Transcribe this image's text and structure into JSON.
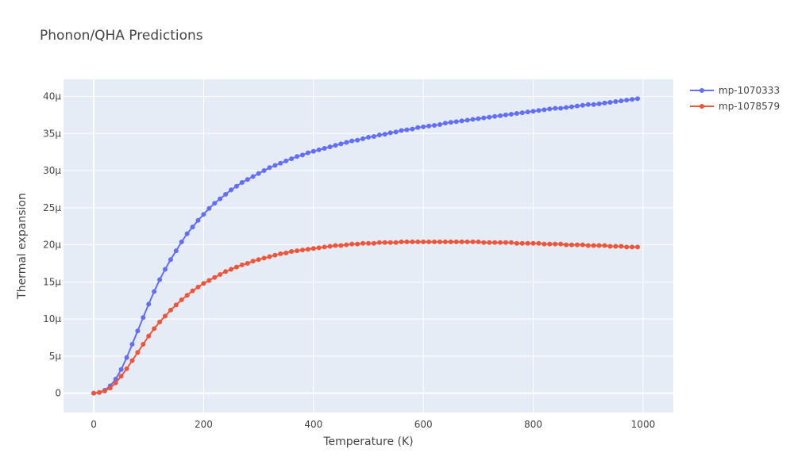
{
  "chart_data": {
    "type": "line",
    "title": "Phonon/QHA Predictions",
    "xlabel": "Temperature (K)",
    "ylabel": "Thermal expansion",
    "xlim": [
      -55,
      1055
    ],
    "ylim": [
      -2.6,
      42.3
    ],
    "y_unit_scale": 1e-06,
    "x_ticks": [
      0,
      200,
      400,
      600,
      800,
      1000
    ],
    "x_tick_labels": [
      "0",
      "200",
      "400",
      "600",
      "800",
      "1000"
    ],
    "y_ticks": [
      0,
      5,
      10,
      15,
      20,
      25,
      30,
      35,
      40
    ],
    "y_tick_labels": [
      "0",
      "5μ",
      "10μ",
      "15μ",
      "20μ",
      "25μ",
      "30μ",
      "35μ",
      "40μ"
    ],
    "grid": true,
    "legend_position": "top-right, outside plot",
    "series": [
      {
        "name": "mp-1070333",
        "color": "#636efa",
        "x": [
          0,
          10,
          20,
          30,
          40,
          50,
          60,
          70,
          80,
          90,
          100,
          110,
          120,
          130,
          140,
          150,
          160,
          170,
          180,
          190,
          200,
          210,
          220,
          230,
          240,
          250,
          260,
          270,
          280,
          290,
          300,
          310,
          320,
          330,
          340,
          350,
          360,
          370,
          380,
          390,
          400,
          410,
          420,
          430,
          440,
          450,
          460,
          470,
          480,
          490,
          500,
          510,
          520,
          530,
          540,
          550,
          560,
          570,
          580,
          590,
          600,
          610,
          620,
          630,
          640,
          650,
          660,
          670,
          680,
          690,
          700,
          710,
          720,
          730,
          740,
          750,
          760,
          770,
          780,
          790,
          800,
          810,
          820,
          830,
          840,
          850,
          860,
          870,
          880,
          890,
          900,
          910,
          920,
          930,
          940,
          950,
          960,
          970,
          980,
          990
        ],
        "y": [
          0,
          0.1,
          0.4,
          1.0,
          1.9,
          3.2,
          4.8,
          6.6,
          8.4,
          10.2,
          12.0,
          13.7,
          15.3,
          16.7,
          18.0,
          19.2,
          20.4,
          21.5,
          22.4,
          23.3,
          24.1,
          24.9,
          25.6,
          26.2,
          26.8,
          27.4,
          27.9,
          28.4,
          28.8,
          29.2,
          29.6,
          30.0,
          30.4,
          30.7,
          31.0,
          31.3,
          31.6,
          31.9,
          32.1,
          32.4,
          32.6,
          32.8,
          33.0,
          33.2,
          33.4,
          33.6,
          33.8,
          34.0,
          34.1,
          34.3,
          34.5,
          34.6,
          34.8,
          34.9,
          35.1,
          35.2,
          35.4,
          35.5,
          35.6,
          35.8,
          35.9,
          36.0,
          36.1,
          36.2,
          36.4,
          36.5,
          36.6,
          36.7,
          36.8,
          36.9,
          37.0,
          37.1,
          37.2,
          37.3,
          37.4,
          37.5,
          37.6,
          37.7,
          37.8,
          37.9,
          38.0,
          38.1,
          38.2,
          38.3,
          38.4,
          38.4,
          38.5,
          38.6,
          38.7,
          38.8,
          38.9,
          38.9,
          39.0,
          39.1,
          39.2,
          39.3,
          39.4,
          39.5,
          39.6,
          39.7
        ]
      },
      {
        "name": "mp-1078579",
        "color": "#ef553b",
        "x": [
          0,
          10,
          20,
          30,
          40,
          50,
          60,
          70,
          80,
          90,
          100,
          110,
          120,
          130,
          140,
          150,
          160,
          170,
          180,
          190,
          200,
          210,
          220,
          230,
          240,
          250,
          260,
          270,
          280,
          290,
          300,
          310,
          320,
          330,
          340,
          350,
          360,
          370,
          380,
          390,
          400,
          410,
          420,
          430,
          440,
          450,
          460,
          470,
          480,
          490,
          500,
          510,
          520,
          530,
          540,
          550,
          560,
          570,
          580,
          590,
          600,
          610,
          620,
          630,
          640,
          650,
          660,
          670,
          680,
          690,
          700,
          710,
          720,
          730,
          740,
          750,
          760,
          770,
          780,
          790,
          800,
          810,
          820,
          830,
          840,
          850,
          860,
          870,
          880,
          890,
          900,
          910,
          920,
          930,
          940,
          950,
          960,
          970,
          980,
          990
        ],
        "y": [
          0,
          0.1,
          0.3,
          0.7,
          1.4,
          2.3,
          3.3,
          4.4,
          5.5,
          6.6,
          7.7,
          8.7,
          9.6,
          10.4,
          11.2,
          11.9,
          12.6,
          13.2,
          13.8,
          14.3,
          14.8,
          15.2,
          15.6,
          16.0,
          16.4,
          16.7,
          17.0,
          17.3,
          17.5,
          17.8,
          18.0,
          18.2,
          18.4,
          18.6,
          18.8,
          18.9,
          19.1,
          19.2,
          19.3,
          19.4,
          19.5,
          19.6,
          19.7,
          19.8,
          19.9,
          19.9,
          20.0,
          20.1,
          20.1,
          20.2,
          20.2,
          20.2,
          20.3,
          20.3,
          20.3,
          20.3,
          20.4,
          20.4,
          20.4,
          20.4,
          20.4,
          20.4,
          20.4,
          20.4,
          20.4,
          20.4,
          20.4,
          20.4,
          20.4,
          20.4,
          20.4,
          20.3,
          20.3,
          20.3,
          20.3,
          20.3,
          20.3,
          20.2,
          20.2,
          20.2,
          20.2,
          20.2,
          20.1,
          20.1,
          20.1,
          20.1,
          20.0,
          20.0,
          20.0,
          20.0,
          19.9,
          19.9,
          19.9,
          19.9,
          19.8,
          19.8,
          19.8,
          19.7,
          19.7,
          19.7
        ]
      }
    ]
  }
}
